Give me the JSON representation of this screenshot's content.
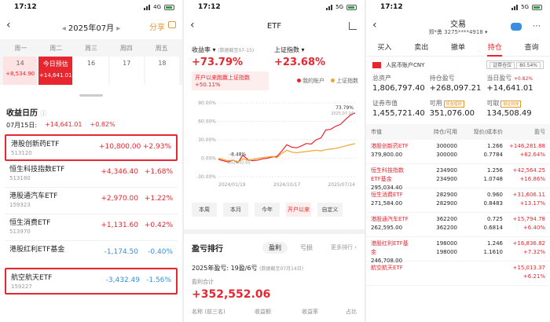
{
  "status": {
    "time": "17:12",
    "p1_net": "4G",
    "p2_net": "5G",
    "p3_net": "5G"
  },
  "calendar": {
    "month": "2025年07月",
    "share": "分享",
    "weekdays": [
      "周一",
      "周二",
      "周三",
      "周四",
      "周五"
    ],
    "days": [
      {
        "label": "14",
        "pnl": "+8,534.90",
        "kind": "up"
      },
      {
        "label": "今日预估",
        "pnl": "+14,641.01",
        "kind": "today"
      },
      {
        "label": "16",
        "pnl": "",
        "kind": "none"
      },
      {
        "label": "17",
        "pnl": "",
        "kind": "none"
      },
      {
        "label": "18",
        "pnl": "",
        "kind": "none"
      }
    ],
    "title": "收益日历",
    "date": "07月15日:",
    "day_total": "+14,641.01",
    "day_pct": "+0.82%",
    "holdings": [
      {
        "name": "港股创新药ETF",
        "code": "513120",
        "amount": "+10,800.00",
        "pct": "+2.93%",
        "boxed": true,
        "dir": "up"
      },
      {
        "name": "恒生科技指数ETF",
        "code": "513180",
        "amount": "+4,346.40",
        "pct": "+1.68%",
        "boxed": false,
        "dir": "up"
      },
      {
        "name": "港股通汽车ETF",
        "code": "159323",
        "amount": "+2,970.00",
        "pct": "+1.22%",
        "boxed": false,
        "dir": "up"
      },
      {
        "name": "恒生消费ETF",
        "code": "513970",
        "amount": "+1,131.60",
        "pct": "+0.42%",
        "boxed": false,
        "dir": "up"
      },
      {
        "name": "港股红利ETF基金",
        "code": "",
        "amount": "-1,174.50",
        "pct": "-0.40%",
        "boxed": false,
        "dir": "down"
      },
      {
        "name": "航空航天ETF",
        "code": "159227",
        "amount": "-3,432.49",
        "pct": "-1.56%",
        "boxed": true,
        "dir": "down"
      }
    ]
  },
  "etf": {
    "title": "ETF",
    "yield_label": "收益率",
    "yield_note": "(数据截至07-15)",
    "yield_value": "+73.79%",
    "index_label": "上证指数",
    "index_value": "+23.68%",
    "beat_text": "开户以来跑赢上证指数",
    "beat_value": "+50.11%",
    "legend_mine": "我的账户",
    "legend_index": "上证指数",
    "range_buttons": [
      "本周",
      "本月",
      "今年",
      "开户以来",
      "自定义"
    ],
    "rank_title": "盈亏排行",
    "rank_tabs": [
      "盈利",
      "亏损"
    ],
    "more": "更多排行",
    "year_summary": "2025年盈亏: 19盈/6亏",
    "year_note": "(数据截至07月14日)",
    "sum_label": "盈利合计",
    "sum_value": "+352,552.06",
    "rank_cols": [
      "名称 (前三名)",
      "收益额",
      "收益率",
      "占比"
    ]
  },
  "chart_data": {
    "type": "line",
    "x_ticks": [
      "2024/01/19",
      "2024/10/17",
      "2025/07/14"
    ],
    "y_ticks": [
      "90.00%",
      "60.00%",
      "30.00%",
      "0.00%",
      "-30.00%"
    ],
    "ylim": [
      -30,
      90
    ],
    "series": [
      {
        "name": "我的账户",
        "values": [
          -2,
          -4,
          -6,
          -3,
          -7,
          5,
          -2,
          -4,
          -3,
          -1,
          0,
          2,
          3,
          12,
          22,
          18,
          17,
          20,
          24,
          23,
          30,
          33,
          46,
          47,
          52,
          55,
          63,
          70,
          73.79
        ]
      },
      {
        "name": "上证指数",
        "values": [
          0,
          -2,
          -4,
          -3,
          -6,
          -1,
          -3,
          -2,
          0,
          1,
          2,
          3,
          1,
          8,
          13,
          10,
          9,
          10,
          11,
          12,
          13,
          12,
          14,
          15,
          16,
          18,
          20,
          22,
          23.68
        ]
      }
    ],
    "annotations": [
      {
        "text": "73.79%",
        "note": "2025.07.14"
      },
      {
        "text": "-8.48%",
        "note": "2024.02.05"
      }
    ]
  },
  "trade": {
    "title": "交易",
    "account": "郑*勇 3275****4918",
    "tabs": [
      "买入",
      "卖出",
      "撤单",
      "持仓",
      "查询"
    ],
    "acct_name": "人民币账户CNY",
    "tag1": "证券仓位",
    "tag2": "80.54%",
    "total_asset_label": "总资产",
    "total_asset": "1,806,797.40",
    "hold_pnl_label": "持仓盈亏",
    "hold_pnl": "+268,097.21",
    "today_pnl_label": "当日盈亏",
    "today_pct": "+0.82%",
    "today_pnl": "+14,641.01",
    "mv_label": "证券市值",
    "mv": "1,455,721.40",
    "avail_label": "可用",
    "avail_tag": "现金理财",
    "avail": "351,076.00",
    "withdraw_label": "可取",
    "withdraw_tag": "银证转账",
    "withdraw": "134,508.49",
    "head": [
      "市值",
      "持仓/可用",
      "现价/成本价",
      "盈亏"
    ],
    "positions": [
      {
        "name": "港股创新药ETF",
        "mv": "379,800.00",
        "qty": "300000",
        "avail": "300000",
        "price": "1.266",
        "cost": "0.7784",
        "pnl": "+146,281.88",
        "pct": "+62.64%"
      },
      {
        "name": "恒生科技指数ETF基金",
        "mv": "295,034.40",
        "qty": "234900",
        "avail": "234900",
        "price": "1.256",
        "cost": "1.0748",
        "pnl": "+42,564.25",
        "pct": "+16.86%"
      },
      {
        "name": "恒生消费ETF",
        "mv": "271,584.00",
        "qty": "282900",
        "avail": "282900",
        "price": "0.960",
        "cost": "0.8483",
        "pnl": "+31,606.11",
        "pct": "+13.17%"
      },
      {
        "name": "港股通汽车ETF",
        "mv": "262,595.00",
        "qty": "362200",
        "avail": "362200",
        "price": "0.725",
        "cost": "0.6814",
        "pnl": "+15,794.78",
        "pct": "+6.40%"
      },
      {
        "name": "港股红利ETF基金",
        "mv": "246,708.00",
        "qty": "198000",
        "avail": "198000",
        "price": "1.246",
        "cost": "1.1610",
        "pnl": "+16,836.82",
        "pct": "+7.32%"
      },
      {
        "name": "航空航天ETF",
        "mv": "",
        "qty": "",
        "avail": "",
        "price": "",
        "cost": "",
        "pnl": "+15,013.37",
        "pct": "+6.21%"
      }
    ]
  }
}
